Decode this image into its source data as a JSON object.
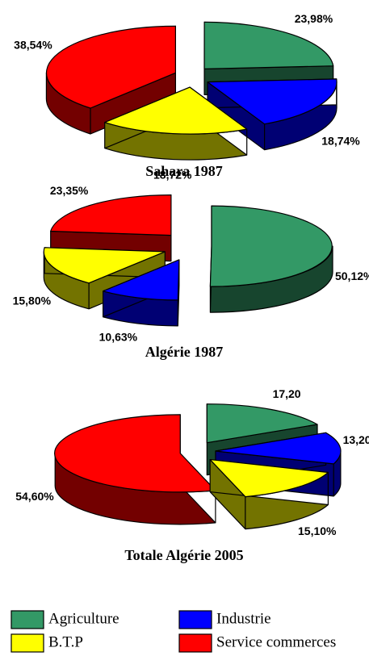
{
  "chart_data": [
    {
      "type": "pie3d",
      "title": "Sahara 1987",
      "categories": [
        "Agriculture",
        "Industrie",
        "B.T.P",
        "Service commerces"
      ],
      "values": [
        23.98,
        18.74,
        18.72,
        38.54
      ],
      "value_labels": [
        "23,98%",
        "18,74%",
        "18,72%",
        "38,54%"
      ],
      "colors": [
        "#339966",
        "#0000ff",
        "#ffff00",
        "#ff0000"
      ]
    },
    {
      "type": "pie3d",
      "title": "Algérie 1987",
      "categories": [
        "Agriculture",
        "Industrie",
        "B.T.P",
        "Service commerces"
      ],
      "values": [
        50.12,
        10.63,
        15.8,
        23.35
      ],
      "value_labels": [
        "50,12%",
        "10,63%",
        "15,80%",
        "23,35%"
      ],
      "colors": [
        "#339966",
        "#0000ff",
        "#ffff00",
        "#ff0000"
      ]
    },
    {
      "type": "pie3d",
      "title": "Totale Algérie  2005",
      "categories": [
        "Agriculture",
        "Industrie",
        "B.T.P",
        "Service commerces"
      ],
      "values": [
        17.2,
        13.2,
        15.1,
        54.6
      ],
      "value_labels": [
        "17,20",
        "13,20%",
        "15,10%",
        "54,60%"
      ],
      "colors": [
        "#339966",
        "#0000ff",
        "#ffff00",
        "#ff0000"
      ]
    }
  ]
}
